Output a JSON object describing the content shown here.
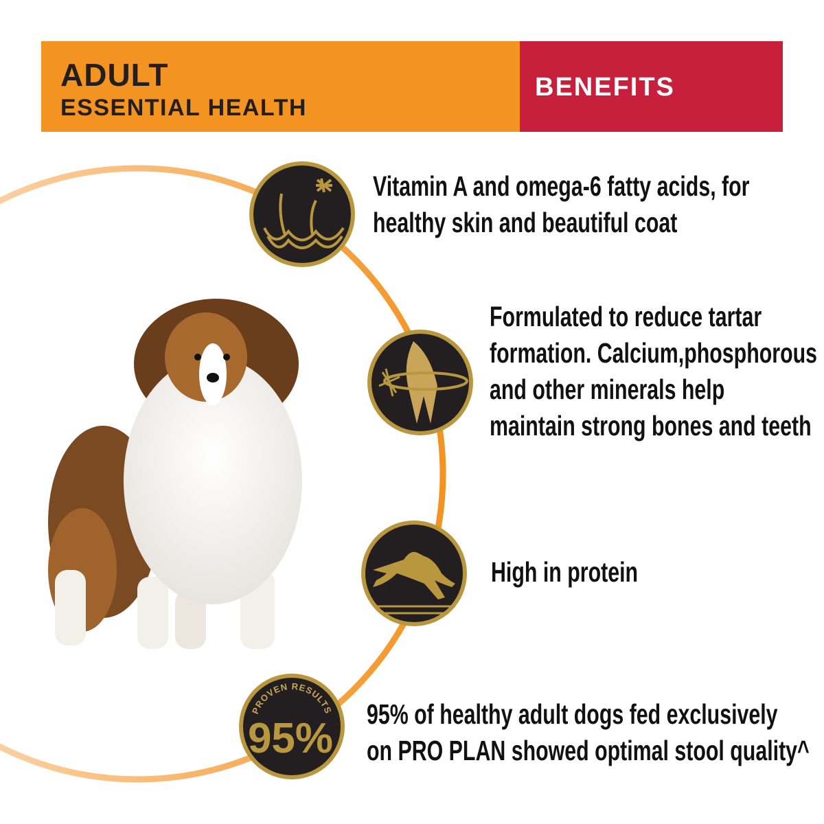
{
  "header": {
    "line1": "ADULT",
    "line2": "ESSENTIAL HEALTH",
    "benefits": "BENEFITS"
  },
  "colors": {
    "orange": "#f39321",
    "red": "#c8203c",
    "gold": "#b8973f",
    "dark": "#231f20"
  },
  "benefits": [
    {
      "icon": "skin-coat-icon",
      "lines": [
        "Vitamin A and omega-6 fatty acids, for",
        "healthy skin and beautiful coat"
      ]
    },
    {
      "icon": "tooth-bone-icon",
      "lines": [
        "Formulated to reduce tartar",
        "formation. Calcium,phosphorous",
        "and other minerals help",
        "maintain strong bones and teeth"
      ]
    },
    {
      "icon": "running-dog-icon",
      "lines": [
        "High in protein"
      ]
    },
    {
      "icon": "proven-results-badge",
      "badge_top": "PROVEN RESULTS",
      "badge_value": "95%",
      "lines": [
        "95% of healthy adult dogs fed exclusively",
        "on PRO PLAN showed optimal stool quality^"
      ]
    }
  ]
}
